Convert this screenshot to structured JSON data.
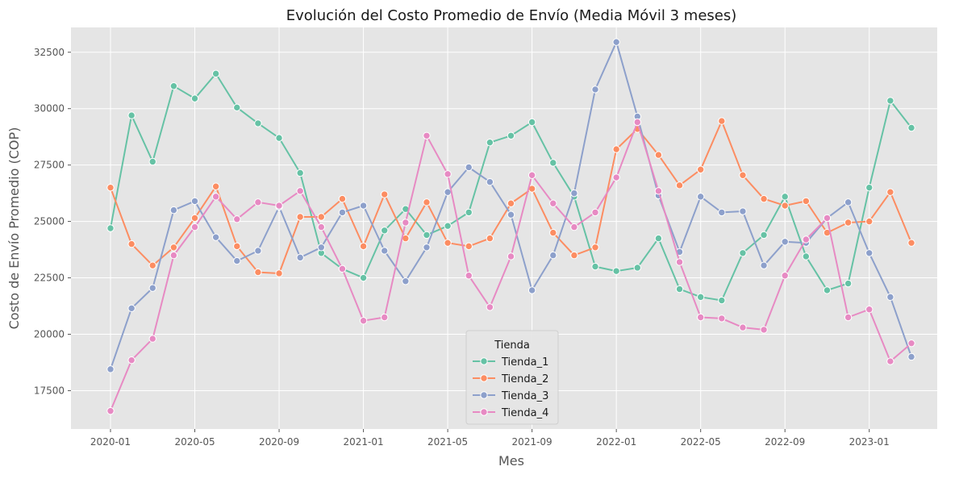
{
  "chart_data": {
    "type": "line",
    "title": "Evolución del Costo Promedio de Envío (Media Móvil 3 meses)",
    "xlabel": "Mes",
    "ylabel": "Costo de Envío Promedio (COP)",
    "x": [
      "2020-01",
      "2020-02",
      "2020-03",
      "2020-04",
      "2020-05",
      "2020-06",
      "2020-07",
      "2020-08",
      "2020-09",
      "2020-10",
      "2020-11",
      "2020-12",
      "2021-01",
      "2021-02",
      "2021-03",
      "2021-04",
      "2021-05",
      "2021-06",
      "2021-07",
      "2021-08",
      "2021-09",
      "2021-10",
      "2021-11",
      "2021-12",
      "2022-01",
      "2022-02",
      "2022-03",
      "2022-04",
      "2022-05",
      "2022-06",
      "2022-07",
      "2022-08",
      "2022-09",
      "2022-10",
      "2022-11",
      "2022-12",
      "2023-01",
      "2023-02",
      "2023-03"
    ],
    "x_ticks": [
      "2020-01",
      "2020-05",
      "2020-09",
      "2021-01",
      "2021-05",
      "2021-09",
      "2022-01",
      "2022-05",
      "2022-09",
      "2023-01"
    ],
    "y_ticks": [
      17500,
      20000,
      22500,
      25000,
      27500,
      30000,
      32500
    ],
    "ylim": [
      15800,
      33600
    ],
    "grid": true,
    "legend": {
      "title": "Tienda",
      "position": "bottom-center"
    },
    "series": [
      {
        "name": "Tienda_1",
        "color": "#66c2a5",
        "values": [
          24700,
          29700,
          27650,
          31000,
          30450,
          31550,
          30050,
          29350,
          28700,
          27150,
          23600,
          22900,
          22500,
          24600,
          25550,
          24400,
          24800,
          25400,
          28500,
          28800,
          29400,
          27600,
          26100,
          23000,
          22800,
          22950,
          24250,
          22000,
          21650,
          21500,
          23600,
          24400,
          26100,
          23450,
          21950,
          22250,
          26500,
          30350,
          29150
        ]
      },
      {
        "name": "Tienda_2",
        "color": "#fc8d62",
        "values": [
          26500,
          24000,
          23050,
          23850,
          25150,
          26550,
          23900,
          22750,
          22700,
          25200,
          25200,
          26000,
          23900,
          26200,
          24250,
          25850,
          24050,
          23900,
          24250,
          25800,
          26450,
          24500,
          23500,
          23850,
          28200,
          29100,
          27950,
          26600,
          27300,
          29450,
          27050,
          26000,
          25700,
          25900,
          24500,
          24950,
          25000,
          26300,
          24050
        ]
      },
      {
        "name": "Tienda_3",
        "color": "#8da0cb",
        "values": [
          18450,
          21150,
          22050,
          25500,
          25900,
          24300,
          23250,
          23700,
          25650,
          23400,
          23850,
          25400,
          25700,
          23700,
          22350,
          23850,
          26300,
          27400,
          26750,
          25300,
          21950,
          23500,
          26250,
          30850,
          32950,
          29650,
          26150,
          23650,
          26100,
          25400,
          25450,
          23050,
          24100,
          24050,
          25150,
          25850,
          23600,
          21650,
          19000
        ]
      },
      {
        "name": "Tienda_4",
        "color": "#e78ac3",
        "values": [
          16600,
          18850,
          19800,
          23500,
          24750,
          26100,
          25100,
          25850,
          25700,
          26350,
          24750,
          22900,
          20600,
          20750,
          24950,
          28800,
          27100,
          22600,
          21200,
          23450,
          27050,
          25800,
          24750,
          25400,
          26950,
          29400,
          26350,
          23200,
          20750,
          20700,
          20300,
          20200,
          22600,
          24200,
          25150,
          20750,
          21100,
          18800,
          19600
        ]
      }
    ]
  }
}
